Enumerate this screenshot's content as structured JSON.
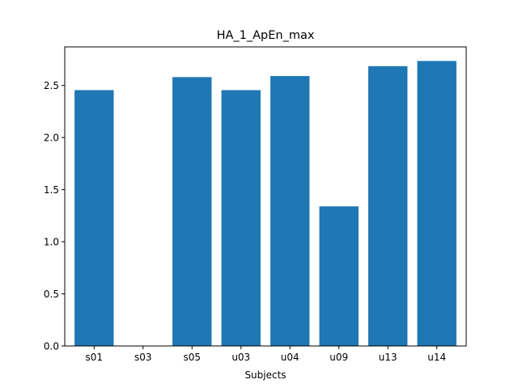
{
  "chart_data": {
    "type": "bar",
    "title": "HA_1_ApEn_max",
    "xlabel": "Subjects",
    "ylabel": "",
    "categories": [
      "s01",
      "s03",
      "s05",
      "u03",
      "u04",
      "u09",
      "u13",
      "u14"
    ],
    "values": [
      2.455,
      0.0,
      2.58,
      2.455,
      2.59,
      1.34,
      2.685,
      2.735
    ],
    "ylim": [
      0,
      2.87
    ],
    "yticks": [
      0.0,
      0.5,
      1.0,
      1.5,
      2.0,
      2.5
    ],
    "ytick_labels": [
      "0.0",
      "0.5",
      "1.0",
      "1.5",
      "2.0",
      "2.5"
    ],
    "bar_color": "#1f77b4",
    "grid": false,
    "legend": "none"
  }
}
